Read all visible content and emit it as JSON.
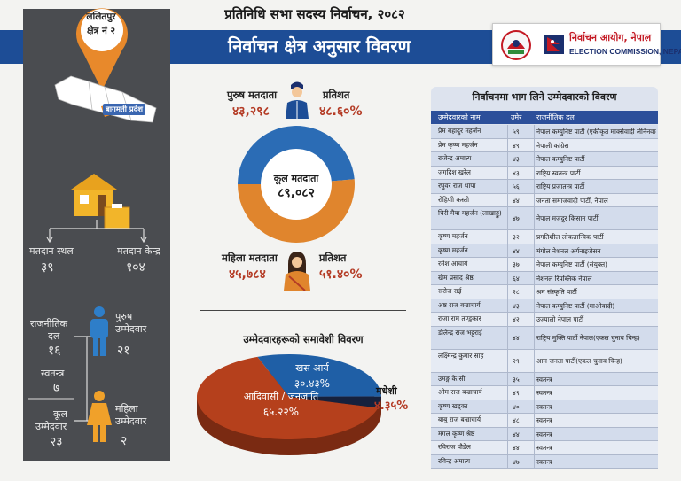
{
  "header": {
    "super_title": "प्रतिनिधि सभा सदस्य निर्वाचन, २०८२",
    "main_title": "निर्वाचन क्षेत्र अनुसार विवरण",
    "commission_np": "निर्वाचन आयोग, नेपाल",
    "commission_en": "ELECTION COMMISSION, NEPAL",
    "emblem_icon": "nepal-emblem-icon",
    "commission_icon": "election-commission-logo-icon",
    "brand_color": "#1d4d96",
    "accent_color": "#c41a24"
  },
  "constituency": {
    "district": "ललितपुर",
    "number_label": "क्षेत्र नं २",
    "province": "बागमती प्रदेश",
    "pin_color": "#e8892b"
  },
  "polling": {
    "station_label": "मतदान स्थल",
    "station_count": "३९",
    "center_label": "मतदान केन्द्र",
    "center_count": "१०४"
  },
  "candidates": {
    "party_label_1": "राजनीतिक",
    "party_label_2": "दल",
    "party_count": "१६",
    "independent_label": "स्वतन्त्र",
    "independent_count": "७",
    "total_label_1": "कूल",
    "total_label_2": "उम्मेदवार",
    "total_count": "२३",
    "male_label_1": "पुरुष",
    "male_label_2": "उम्मेदवार",
    "male_count": "२१",
    "female_label_1": "महिला",
    "female_label_2": "उम्मेदवार",
    "female_count": "२"
  },
  "voters": {
    "male_label": "पुरुष मतदाता",
    "male_count": "४३,२९८",
    "male_pct_label": "प्रतिशत",
    "male_pct": "४८.६०%",
    "total_label": "कूल मतदाता",
    "total_count": "८९,०८२",
    "female_label": "महिला मतदाता",
    "female_count": "४५,७८४",
    "female_pct_label": "प्रतिशत",
    "female_pct": "५१.४०%",
    "male_color": "#2b6cb5",
    "female_color": "#e0852d"
  },
  "chart_data": [
    {
      "type": "pie",
      "subtype": "donut",
      "categories": [
        "पुरुष मतदाता",
        "महिला मतदाता"
      ],
      "values": [
        48.6,
        51.4
      ]
    },
    {
      "type": "pie",
      "subtype": "3d-pie",
      "title": "उम्मेदवारहरूको समावेशी विवरण",
      "categories": [
        "आदिवासी / जनजाति",
        "खस आर्य",
        "मधेशी"
      ],
      "values": [
        65.22,
        30.43,
        4.35
      ],
      "value_labels": [
        "६५.२२%",
        "३०.४३%",
        "४.३५%"
      ],
      "colors": [
        "#b5401c",
        "#1f5fa6",
        "#16213d"
      ]
    }
  ],
  "inclusion": {
    "title": "उम्मेदवारहरूको समावेशी विवरण",
    "adivasi_label": "आदिवासी / जनजाति",
    "adivasi_val": "६५.२२%",
    "khas_label": "खस आर्य",
    "khas_val": "३०.४३%",
    "madhesi_label": "मधेशी",
    "madhesi_val": "४.३५%"
  },
  "table": {
    "title": "निर्वाचनमा भाग लिने उम्मेदवारको विवरण",
    "headers": [
      "उम्मेदवारको नाम",
      "उमेर",
      "राजनीतिक दल"
    ],
    "rows": [
      {
        "name": "प्रेम बहादुर महर्जन",
        "age": "५९",
        "party": "नेपाल कम्युनिष्ट पार्टी (एकीकृत मार्क्सवादी लेनिनवादी)"
      },
      {
        "name": "प्रेम कृष्ण महर्जन",
        "age": "४९",
        "party": "नेपाली कांग्रेस"
      },
      {
        "name": "राजेन्द्र अमात्य",
        "age": "४३",
        "party": "नेपाल कम्युनिष्ट पार्टी"
      },
      {
        "name": "जगदिश खरेल",
        "age": "४३",
        "party": "राष्ट्रिय स्वतन्त्र पार्टी"
      },
      {
        "name": "रघुवर राज थापा",
        "age": "५६",
        "party": "राष्ट्रिय प्रजातन्त्र पार्टी"
      },
      {
        "name": "रोहिणी कस्ती",
        "age": "४४",
        "party": "जनता समाजवादी पार्टी, नेपाल"
      },
      {
        "name": "चिरी मैया महर्जन (लाखाड्डु)",
        "age": "४७",
        "party": "नेपाल मजदुर किसान पार्टी"
      },
      {
        "name": "कृष्ण महर्जन",
        "age": "३२",
        "party": "प्रगतिशील लोकतान्त्रिक पार्टी"
      },
      {
        "name": "कृष्ण महर्जन",
        "age": "४४",
        "party": "मंगोल नेशनल अर्गनाइजेसन"
      },
      {
        "name": "रमेश आचार्य",
        "age": "३७",
        "party": "नेपाल कम्युनिष्ट पार्टी (संयुक्त)"
      },
      {
        "name": "खेम प्रसाद श्रेष्ठ",
        "age": "६४",
        "party": "नेशनल रिपब्लिक नेपाल"
      },
      {
        "name": "सरोज राई",
        "age": "२८",
        "party": "श्रम संस्कृति पार्टी"
      },
      {
        "name": "अष्ट राज बज्राचार्य",
        "age": "४३",
        "party": "नेपाल कम्युनिष्ट पार्टी (माओवादी)"
      },
      {
        "name": "राजा राम तण्डुकार",
        "age": "४२",
        "party": "उज्यालो नेपाल पार्टी"
      },
      {
        "name": "डोलेन्द्र राज भट्टराई",
        "age": "४४",
        "party": "राष्ट्रिय मुक्ति पार्टी नेपाल(एकल चुनाव चिन्ह)"
      },
      {
        "name": "लक्ष्मिन्द्र कुमार साह",
        "age": "२९",
        "party": "आम जनता पार्टी(एकल चुनाव चिन्ह)"
      },
      {
        "name": "उमङ्ग के.सी",
        "age": "३५",
        "party": "स्वतन्त्र"
      },
      {
        "name": "ओम राज बज्राचार्य",
        "age": "४९",
        "party": "स्वतन्त्र"
      },
      {
        "name": "कृष्ण खड्का",
        "age": "४०",
        "party": "स्वतन्त्र"
      },
      {
        "name": "बाबु राज बज्राचार्य",
        "age": "४८",
        "party": "स्वतन्त्र"
      },
      {
        "name": "मंगल कृष्ण श्रेष्ठ",
        "age": "४४",
        "party": "स्वतन्त्र"
      },
      {
        "name": "रविराज पौडेल",
        "age": "४४",
        "party": "स्वतन्त्र"
      },
      {
        "name": "रविन्द्र अमात्य",
        "age": "४७",
        "party": "स्वतन्त्र"
      }
    ]
  }
}
